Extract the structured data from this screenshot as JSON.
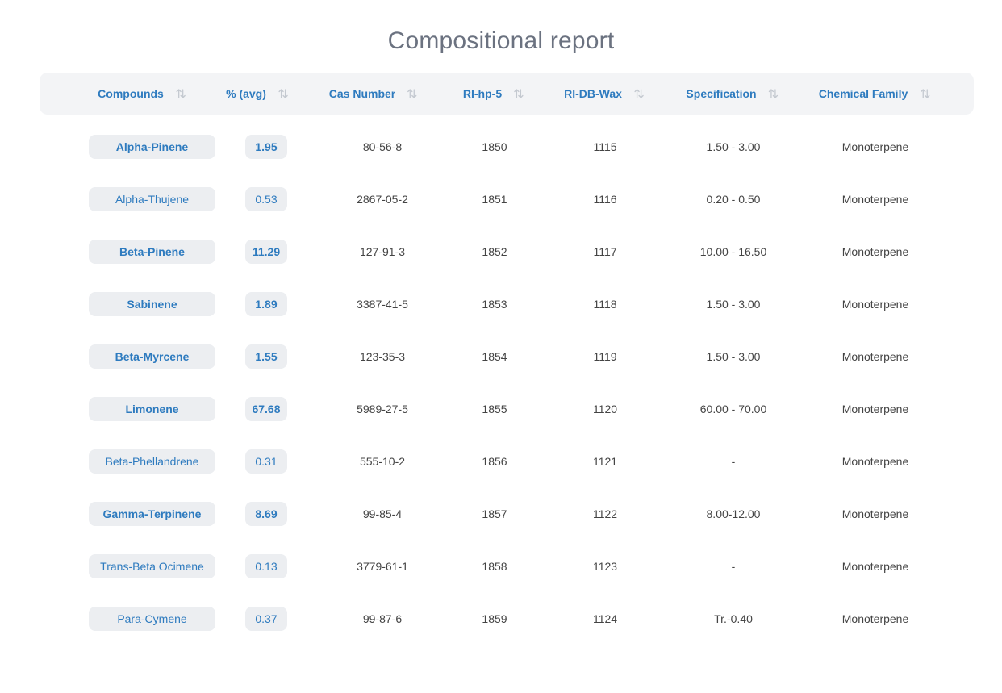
{
  "page": {
    "title": "Compositional report"
  },
  "table": {
    "headers": [
      "Compounds",
      "% (avg)",
      "Cas Number",
      "RI-hp-5",
      "RI-DB-Wax",
      "Specification",
      "Chemical Family"
    ],
    "rows": [
      {
        "compound": "Alpha-Pinene",
        "avg": "1.95",
        "cas": "80-56-8",
        "ri_hp5": "1850",
        "ri_dbwax": "1115",
        "spec": "1.50 - 3.00",
        "family": "Monoterpene",
        "bold": true
      },
      {
        "compound": "Alpha-Thujene",
        "avg": "0.53",
        "cas": "2867-05-2",
        "ri_hp5": "1851",
        "ri_dbwax": "1116",
        "spec": "0.20 - 0.50",
        "family": "Monoterpene",
        "bold": false
      },
      {
        "compound": "Beta-Pinene",
        "avg": "11.29",
        "cas": "127-91-3",
        "ri_hp5": "1852",
        "ri_dbwax": "1117",
        "spec": "10.00 - 16.50",
        "family": "Monoterpene",
        "bold": true
      },
      {
        "compound": "Sabinene",
        "avg": "1.89",
        "cas": "3387-41-5",
        "ri_hp5": "1853",
        "ri_dbwax": "1118",
        "spec": "1.50 - 3.00",
        "family": "Monoterpene",
        "bold": true
      },
      {
        "compound": "Beta-Myrcene",
        "avg": "1.55",
        "cas": "123-35-3",
        "ri_hp5": "1854",
        "ri_dbwax": "1119",
        "spec": "1.50 - 3.00",
        "family": "Monoterpene",
        "bold": true
      },
      {
        "compound": "Limonene",
        "avg": "67.68",
        "cas": "5989-27-5",
        "ri_hp5": "1855",
        "ri_dbwax": "1120",
        "spec": "60.00 - 70.00",
        "family": "Monoterpene",
        "bold": true
      },
      {
        "compound": "Beta-Phellandrene",
        "avg": "0.31",
        "cas": "555-10-2",
        "ri_hp5": "1856",
        "ri_dbwax": "1121",
        "spec": "-",
        "family": "Monoterpene",
        "bold": false
      },
      {
        "compound": "Gamma-Terpinene",
        "avg": "8.69",
        "cas": "99-85-4",
        "ri_hp5": "1857",
        "ri_dbwax": "1122",
        "spec": "8.00-12.00",
        "family": "Monoterpene",
        "bold": true
      },
      {
        "compound": "Trans-Beta Ocimene",
        "avg": "0.13",
        "cas": "3779-61-1",
        "ri_hp5": "1858",
        "ri_dbwax": "1123",
        "spec": "-",
        "family": "Monoterpene",
        "bold": false
      },
      {
        "compound": "Para-Cymene",
        "avg": "0.37",
        "cas": "99-87-6",
        "ri_hp5": "1859",
        "ri_dbwax": "1124",
        "spec": "Tr.-0.40",
        "family": "Monoterpene",
        "bold": false
      }
    ]
  },
  "icons": {
    "sort": "sort-arrows-icon"
  },
  "colors": {
    "accent": "#2e7bbf",
    "header_bg": "#f3f4f6",
    "pill_bg": "#eceef1",
    "title": "#6b7280",
    "text": "#444444"
  }
}
